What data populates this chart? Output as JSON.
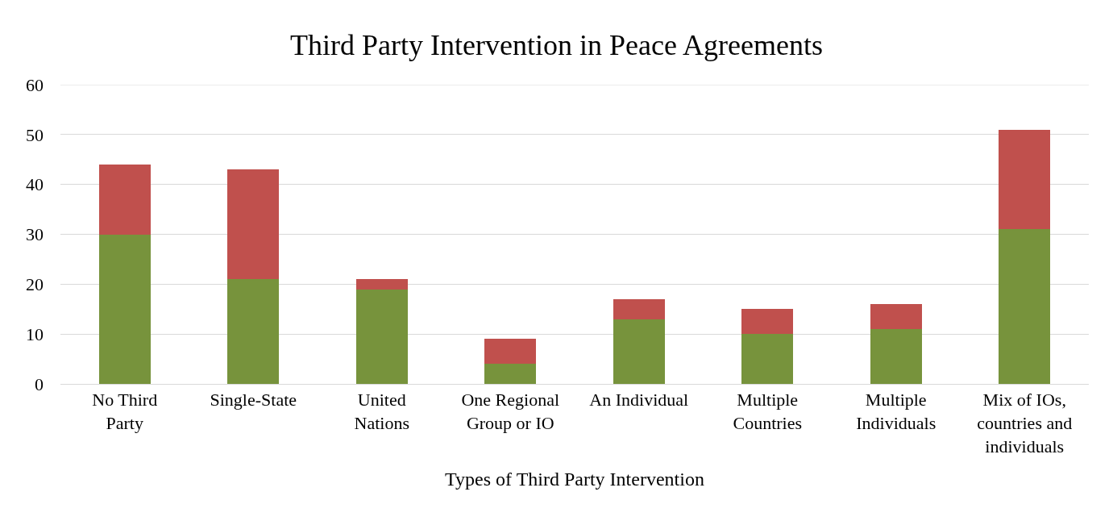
{
  "chart_data": {
    "type": "bar",
    "title": "Third Party Intervention in Peace Agreements",
    "xlabel": "Types of Third Party Intervention",
    "categories": [
      "No Third Party",
      "Single-State",
      "United Nations",
      "One Regional Group or IO",
      "An Individual",
      "Multiple Countries",
      "Multiple Individuals",
      "Mix of IOs, countries and individuals"
    ],
    "series": [
      {
        "color": "#77933c",
        "values": [
          30,
          21,
          19,
          4,
          13,
          10,
          11,
          31
        ]
      },
      {
        "color": "#c0504d",
        "values": [
          14,
          22,
          2,
          5,
          4,
          5,
          5,
          20
        ]
      }
    ],
    "stacked": true,
    "ylim": [
      0,
      60
    ],
    "yticks": [
      0,
      10,
      20,
      30,
      40,
      50,
      60
    ],
    "grid": "y"
  }
}
